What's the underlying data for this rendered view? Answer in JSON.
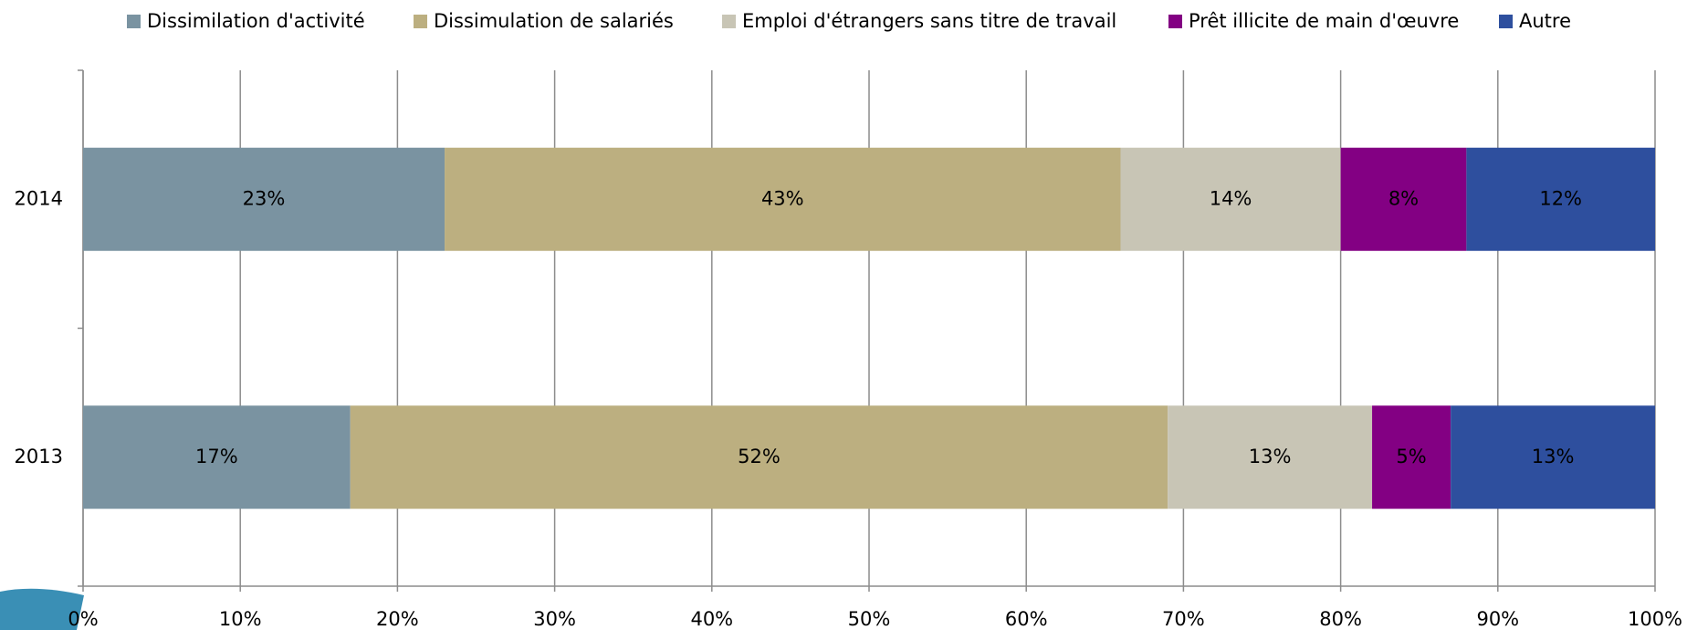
{
  "chart_data": {
    "type": "bar",
    "orientation": "horizontal",
    "stacked": true,
    "categories": [
      "2014",
      "2013"
    ],
    "series": [
      {
        "name": "Dissimilation d'activité",
        "color": "#7a93a1",
        "values": [
          23,
          17
        ],
        "value_labels": [
          "23%",
          "17%"
        ]
      },
      {
        "name": "Dissimulation de salariés",
        "color": "#bcaf80",
        "values": [
          43,
          52
        ],
        "value_labels": [
          "43%",
          "52%"
        ]
      },
      {
        "name": "Emploi d'étrangers sans titre de travail",
        "color": "#c8c5b5",
        "values": [
          14,
          13
        ],
        "value_labels": [
          "14%",
          "13%"
        ]
      },
      {
        "name": "Prêt illicite de main d'œuvre",
        "color": "#830083",
        "values": [
          8,
          5
        ],
        "value_labels": [
          "8%",
          "5%"
        ]
      },
      {
        "name": "Autre",
        "color": "#2e4f9e",
        "values": [
          12,
          13
        ],
        "value_labels": [
          "12%",
          "13%"
        ]
      }
    ],
    "xlim": [
      0,
      100
    ],
    "xticks": [
      {
        "value": 0,
        "label": "0%"
      },
      {
        "value": 10,
        "label": "10%"
      },
      {
        "value": 20,
        "label": "20%"
      },
      {
        "value": 30,
        "label": "30%"
      },
      {
        "value": 40,
        "label": "40%"
      },
      {
        "value": 50,
        "label": "50%"
      },
      {
        "value": 60,
        "label": "60%"
      },
      {
        "value": 70,
        "label": "70%"
      },
      {
        "value": 80,
        "label": "80%"
      },
      {
        "value": 90,
        "label": "90%"
      },
      {
        "value": 100,
        "label": "100%"
      }
    ],
    "grid": true,
    "legend": "top"
  }
}
